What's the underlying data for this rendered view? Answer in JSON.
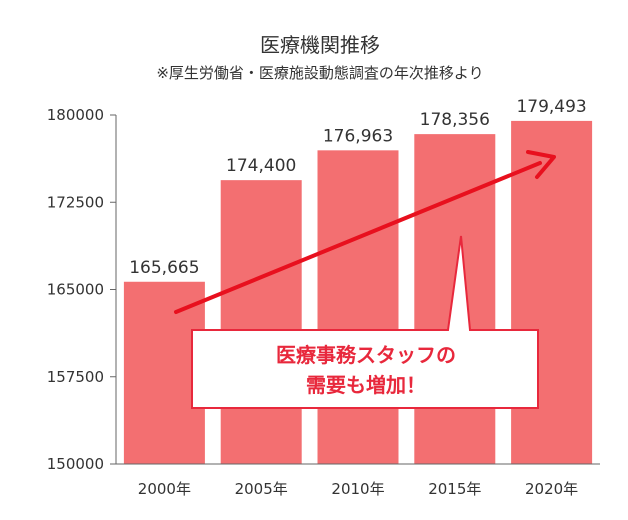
{
  "chart_data": {
    "type": "bar",
    "title": "医療機関推移",
    "subtitle": "※厚生労働省・医療施設動態調査の年次推移より",
    "categories": [
      "2000年",
      "2005年",
      "2010年",
      "2015年",
      "2020年"
    ],
    "values": [
      165665,
      174400,
      176963,
      178356,
      179493
    ],
    "value_labels": [
      "165,665",
      "174,400",
      "176,963",
      "178,356",
      "179,493"
    ],
    "ylim": [
      150000,
      180000
    ],
    "yticks": [
      "150000",
      "157500",
      "165000",
      "172500",
      "180000"
    ],
    "grid": false,
    "bar_color": "#f36f71"
  },
  "annotation": {
    "line1": "医療事務スタッフの",
    "line2": "需要も増加！",
    "color": "#e8283c",
    "arrow_color": "#e8101e"
  }
}
